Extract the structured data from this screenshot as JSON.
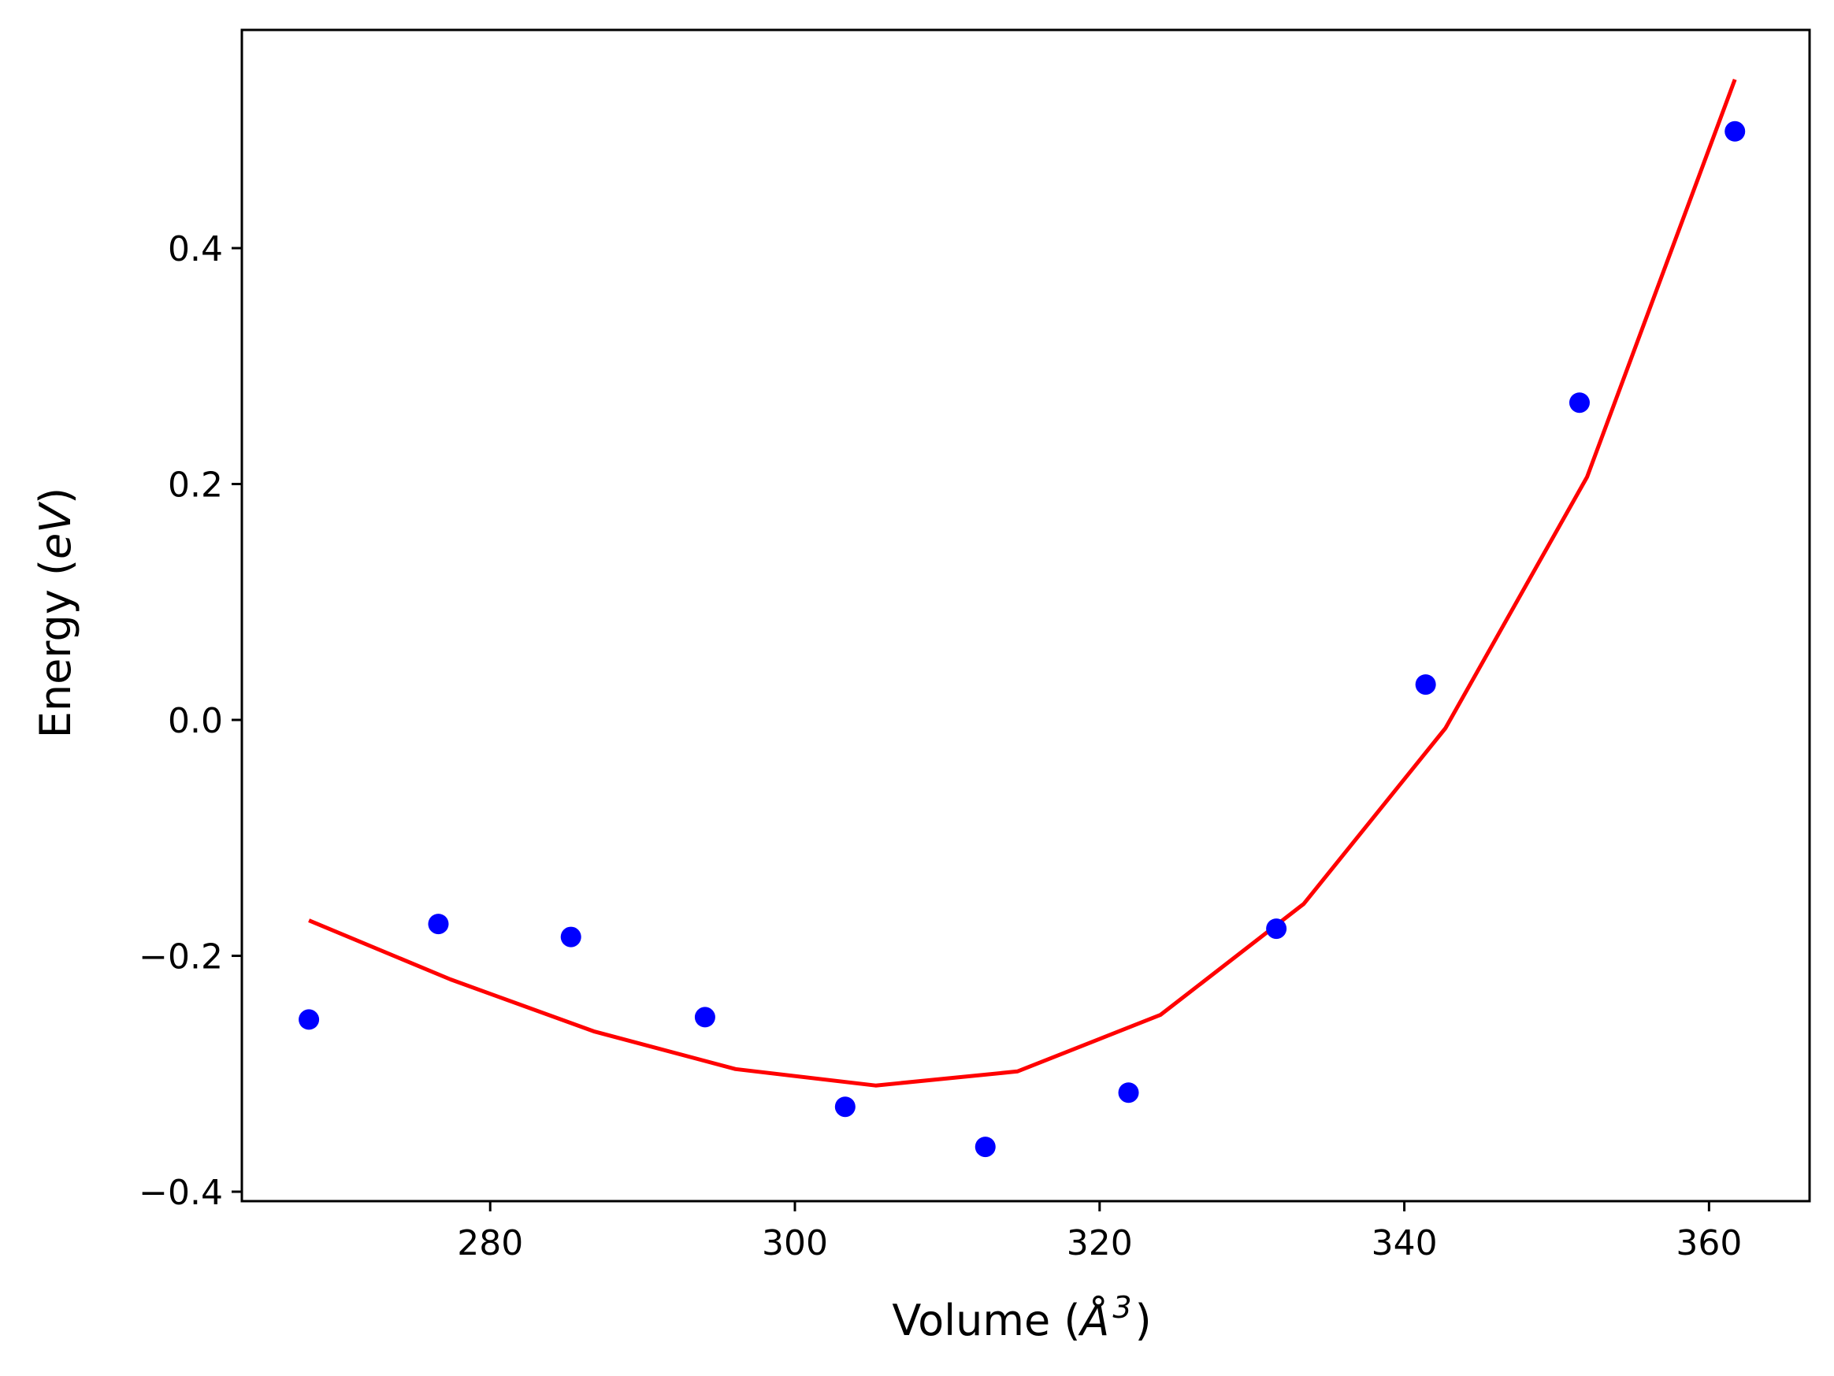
{
  "chart_data": {
    "type": "scatter",
    "xlabel_parts": {
      "before": "Volume (",
      "unit": "Å",
      "exponent": "3",
      "after": ")"
    },
    "ylabel_parts": {
      "before": "Energy (",
      "unit": "eV",
      "after": ")"
    },
    "xlim": [
      263.7,
      366.6
    ],
    "ylim": [
      -0.408,
      0.585
    ],
    "xticks": [
      280,
      300,
      320,
      340,
      360
    ],
    "xtick_labels": [
      "280",
      "300",
      "320",
      "340",
      "360"
    ],
    "yticks": [
      -0.4,
      -0.2,
      0.0,
      0.2,
      0.4
    ],
    "ytick_labels": [
      "−0.4",
      "−0.2",
      "0.0",
      "0.2",
      "0.4"
    ],
    "grid": false,
    "series": [
      {
        "kind": "points",
        "color": "#0000ff",
        "x": [
          268.1,
          276.6,
          285.3,
          294.1,
          303.3,
          312.5,
          321.9,
          331.6,
          341.4,
          351.5,
          361.7
        ],
        "y": [
          -0.254,
          -0.173,
          -0.184,
          -0.252,
          -0.328,
          -0.362,
          -0.316,
          -0.177,
          0.03,
          0.269,
          0.499
        ]
      },
      {
        "kind": "fit-line",
        "color": "#ff0000",
        "x": [
          268.1,
          277.4,
          286.8,
          296.1,
          305.3,
          314.6,
          324.0,
          333.4,
          342.7,
          352.0,
          361.7
        ],
        "y": [
          -0.17,
          -0.22,
          -0.264,
          -0.296,
          -0.31,
          -0.298,
          -0.25,
          -0.156,
          -0.007,
          0.206,
          0.543
        ]
      }
    ]
  }
}
